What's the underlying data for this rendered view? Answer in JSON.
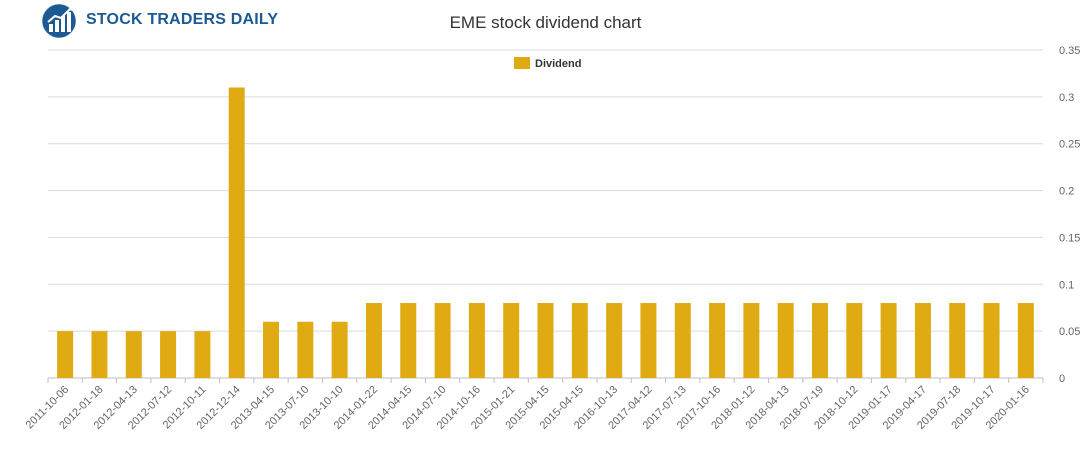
{
  "header": {
    "brand": "STOCK TRADERS DAILY",
    "title": "EME stock dividend chart"
  },
  "colors": {
    "bar": "#e0ab12",
    "grid": "#d9d9d9",
    "brand": "#1d5a92"
  },
  "icons": {
    "logo": "growth-chart-globe-icon"
  },
  "chart_data": {
    "type": "bar",
    "title": "EME stock dividend chart",
    "xlabel": "",
    "ylabel": "",
    "ylim": [
      0,
      0.35
    ],
    "yticks": [
      0,
      0.05,
      0.1,
      0.15,
      0.2,
      0.25,
      0.3,
      0.35
    ],
    "ytick_labels": [
      "0",
      "0.05",
      "0.1",
      "0.15",
      "0.2",
      "0.25",
      "0.3",
      "0.35"
    ],
    "grid": true,
    "legend_position": "top-center",
    "categories": [
      "2011-10-06",
      "2012-01-18",
      "2012-04-13",
      "2012-07-12",
      "2012-10-11",
      "2012-12-14",
      "2013-04-15",
      "2013-07-10",
      "2013-10-10",
      "2014-01-22",
      "2014-04-15",
      "2014-07-10",
      "2014-10-16",
      "2015-01-21",
      "2015-04-15",
      "2015-04-15",
      "2016-10-13",
      "2017-04-12",
      "2017-07-13",
      "2017-10-16",
      "2018-01-12",
      "2018-04-13",
      "2018-07-19",
      "2018-10-12",
      "2019-01-17",
      "2019-04-17",
      "2019-07-18",
      "2019-10-17",
      "2020-01-16"
    ],
    "series": [
      {
        "name": "Dividend",
        "values": [
          0.05,
          0.05,
          0.05,
          0.05,
          0.05,
          0.31,
          0.06,
          0.06,
          0.06,
          0.08,
          0.08,
          0.08,
          0.08,
          0.08,
          0.08,
          0.08,
          0.08,
          0.08,
          0.08,
          0.08,
          0.08,
          0.08,
          0.08,
          0.08,
          0.08,
          0.08,
          0.08,
          0.08,
          0.08
        ]
      }
    ]
  }
}
